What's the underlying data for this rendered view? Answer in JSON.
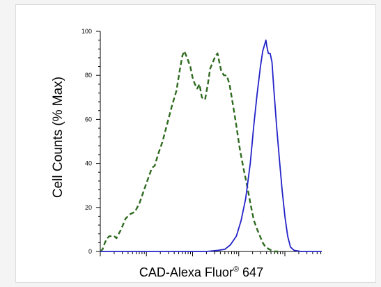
{
  "chart_data": {
    "type": "line",
    "xlabel": "CAD-Alexa Fluor",
    "xlabel_superscript": "®",
    "xlabel_suffix": " 647",
    "ylabel": "Cell Counts (% Max)",
    "x_scale": "log",
    "xlim_decades": [
      0,
      4.8
    ],
    "ylim": [
      0,
      100
    ],
    "y_ticks": [
      0,
      20,
      40,
      60,
      80,
      100
    ],
    "y_tick_labels": [
      "0",
      "20",
      "40",
      "60",
      "80",
      "100"
    ],
    "grid": false,
    "series": [
      {
        "color": "#2e6b1f",
        "style": "dashed",
        "points": [
          [
            0.0,
            0
          ],
          [
            0.05,
            1
          ],
          [
            0.1,
            4
          ],
          [
            0.15,
            6
          ],
          [
            0.2,
            7
          ],
          [
            0.3,
            7
          ],
          [
            0.35,
            6
          ],
          [
            0.45,
            10
          ],
          [
            0.55,
            15
          ],
          [
            0.65,
            17
          ],
          [
            0.75,
            18
          ],
          [
            0.85,
            22
          ],
          [
            0.95,
            28
          ],
          [
            1.05,
            34
          ],
          [
            1.12,
            38
          ],
          [
            1.18,
            39
          ],
          [
            1.25,
            44
          ],
          [
            1.35,
            50
          ],
          [
            1.45,
            58
          ],
          [
            1.55,
            66
          ],
          [
            1.65,
            73
          ],
          [
            1.72,
            82
          ],
          [
            1.78,
            89
          ],
          [
            1.82,
            91
          ],
          [
            1.88,
            88
          ],
          [
            1.95,
            84
          ],
          [
            2.0,
            79
          ],
          [
            2.05,
            76
          ],
          [
            2.1,
            74
          ],
          [
            2.15,
            76
          ],
          [
            2.2,
            70
          ],
          [
            2.27,
            69
          ],
          [
            2.33,
            76
          ],
          [
            2.38,
            83
          ],
          [
            2.44,
            86
          ],
          [
            2.5,
            89
          ],
          [
            2.54,
            90
          ],
          [
            2.58,
            86
          ],
          [
            2.62,
            82
          ],
          [
            2.68,
            80
          ],
          [
            2.74,
            80
          ],
          [
            2.8,
            76
          ],
          [
            2.88,
            66
          ],
          [
            2.95,
            57
          ],
          [
            3.02,
            47
          ],
          [
            3.1,
            38
          ],
          [
            3.18,
            30
          ],
          [
            3.26,
            21
          ],
          [
            3.33,
            14
          ],
          [
            3.4,
            10
          ],
          [
            3.46,
            7
          ],
          [
            3.52,
            4
          ],
          [
            3.58,
            2
          ],
          [
            3.66,
            1
          ],
          [
            3.75,
            0
          ],
          [
            3.85,
            0
          ]
        ]
      },
      {
        "color": "#2222c8",
        "style": "solid",
        "points": [
          [
            0.0,
            0
          ],
          [
            0.5,
            0
          ],
          [
            1.0,
            0
          ],
          [
            1.5,
            0
          ],
          [
            2.0,
            0
          ],
          [
            2.3,
            0
          ],
          [
            2.55,
            0.5
          ],
          [
            2.7,
            1
          ],
          [
            2.82,
            3
          ],
          [
            2.95,
            7
          ],
          [
            3.05,
            14
          ],
          [
            3.15,
            24
          ],
          [
            3.25,
            40
          ],
          [
            3.33,
            58
          ],
          [
            3.4,
            72
          ],
          [
            3.47,
            84
          ],
          [
            3.52,
            91
          ],
          [
            3.56,
            94
          ],
          [
            3.59,
            96
          ],
          [
            3.61,
            93
          ],
          [
            3.64,
            90
          ],
          [
            3.68,
            90
          ],
          [
            3.72,
            86
          ],
          [
            3.76,
            74
          ],
          [
            3.82,
            57
          ],
          [
            3.88,
            42
          ],
          [
            3.94,
            28
          ],
          [
            4.0,
            16
          ],
          [
            4.06,
            7
          ],
          [
            4.12,
            2
          ],
          [
            4.2,
            0.5
          ],
          [
            4.35,
            0
          ],
          [
            4.55,
            0
          ],
          [
            4.8,
            0
          ]
        ]
      }
    ]
  }
}
